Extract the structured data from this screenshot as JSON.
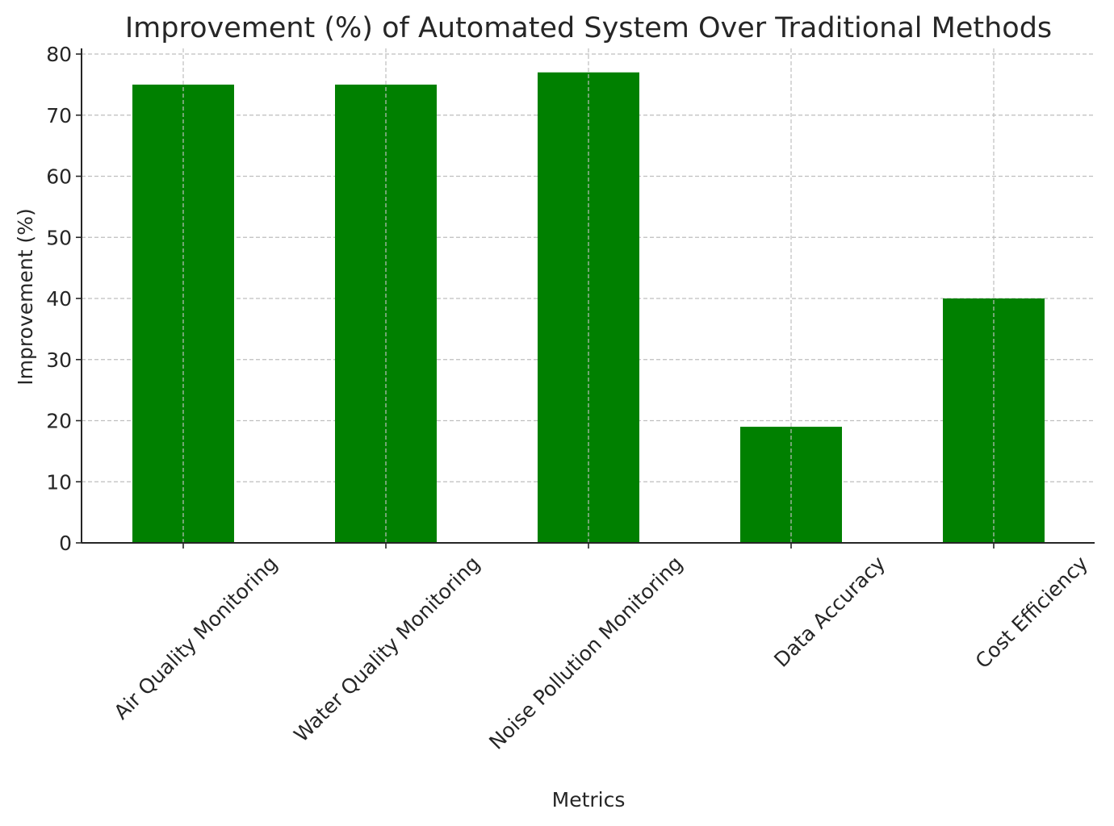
{
  "chart_data": {
    "type": "bar",
    "title": "Improvement (%) of Automated System Over Traditional Methods",
    "xlabel": "Metrics",
    "ylabel": "Improvement (%)",
    "categories": [
      "Air Quality Monitoring",
      "Water Quality Monitoring",
      "Noise Pollution Monitoring",
      "Data Accuracy",
      "Cost Efficiency"
    ],
    "values": [
      75,
      75,
      77,
      19,
      40
    ],
    "ylim": [
      0,
      80
    ],
    "yticks": [
      0,
      10,
      20,
      30,
      40,
      50,
      60,
      70,
      80
    ],
    "grid": true,
    "bar_color": "#008000",
    "legend": "none"
  }
}
